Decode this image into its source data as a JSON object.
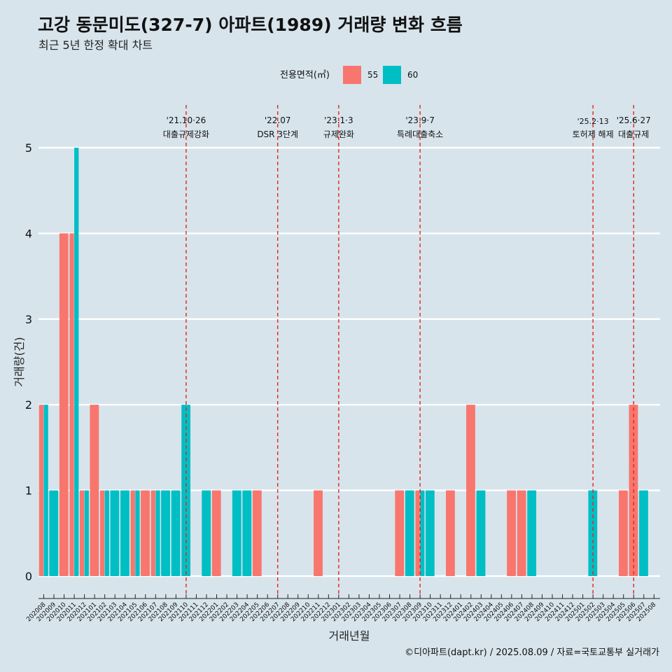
{
  "title": "고강 동문미도(327-7) 아파트(1989) 거래량 변화 흐름",
  "subtitle": "최근 5년 한정 확대 차트",
  "caption": "©디아파트(dapt.kr) / 2025.08.09 / 자료=국토교통부 실거래가",
  "colors": {
    "background": "#d7e4ec",
    "s55": "#f8766d",
    "s60": "#00bfc4",
    "event_line": "#e8231a",
    "grid": "#ffffff"
  },
  "chart_data": {
    "type": "bar",
    "xlabel": "거래년월",
    "ylabel": "거래량(건)",
    "ylim": [
      0,
      5
    ],
    "yticks": [
      0,
      1,
      2,
      3,
      4,
      5
    ],
    "grid": true,
    "legend": {
      "title": "전용면적(㎡)",
      "position": "top"
    },
    "categories": [
      "202008",
      "202009",
      "202010",
      "202011",
      "202012",
      "202101",
      "202102",
      "202103",
      "202104",
      "202105",
      "202106",
      "202107",
      "202108",
      "202109",
      "202110",
      "202111",
      "202112",
      "202201",
      "202202",
      "202203",
      "202204",
      "202205",
      "202206",
      "202207",
      "202208",
      "202209",
      "202210",
      "202211",
      "202212",
      "202301",
      "202302",
      "202303",
      "202304",
      "202305",
      "202306",
      "202307",
      "202308",
      "202309",
      "202310",
      "202311",
      "202312",
      "202401",
      "202402",
      "202403",
      "202404",
      "202405",
      "202406",
      "202407",
      "202408",
      "202409",
      "202410",
      "202411",
      "202412",
      "202501",
      "202502",
      "202503",
      "202504",
      "202505",
      "202506",
      "202507",
      "202508"
    ],
    "series": [
      {
        "name": "55",
        "values": [
          2,
          0,
          4,
          4,
          1,
          2,
          1,
          0,
          0,
          1,
          1,
          1,
          0,
          0,
          0,
          0,
          0,
          1,
          0,
          0,
          0,
          1,
          0,
          0,
          0,
          0,
          0,
          1,
          0,
          0,
          0,
          0,
          0,
          0,
          0,
          1,
          0,
          1,
          0,
          0,
          1,
          0,
          2,
          0,
          0,
          0,
          1,
          1,
          0,
          0,
          0,
          0,
          0,
          0,
          0,
          0,
          0,
          1,
          2,
          0,
          0
        ]
      },
      {
        "name": "60",
        "values": [
          2,
          1,
          0,
          5,
          1,
          0,
          1,
          1,
          1,
          1,
          0,
          1,
          1,
          1,
          2,
          0,
          1,
          0,
          0,
          1,
          1,
          0,
          0,
          0,
          0,
          0,
          0,
          0,
          0,
          0,
          0,
          0,
          0,
          0,
          0,
          0,
          1,
          1,
          1,
          0,
          0,
          0,
          0,
          1,
          0,
          0,
          0,
          0,
          1,
          0,
          0,
          0,
          0,
          0,
          1,
          0,
          0,
          0,
          0,
          1,
          0
        ]
      }
    ],
    "events": [
      {
        "date": "'21.10·26",
        "label": "대출규제강화",
        "month": "202110"
      },
      {
        "date": "'22.07",
        "label": "DSR 3단계",
        "month": "202207"
      },
      {
        "date": "'23.1·3",
        "label": "규제완화",
        "month": "202301"
      },
      {
        "date": "'23.9·7",
        "label": "특례대출축소",
        "month": "202309"
      },
      {
        "date": "'25.2·13",
        "label": "토허제 해제",
        "month": "202502"
      },
      {
        "date": "'25.6·27",
        "label": "대출규제",
        "month": "202506"
      }
    ]
  }
}
